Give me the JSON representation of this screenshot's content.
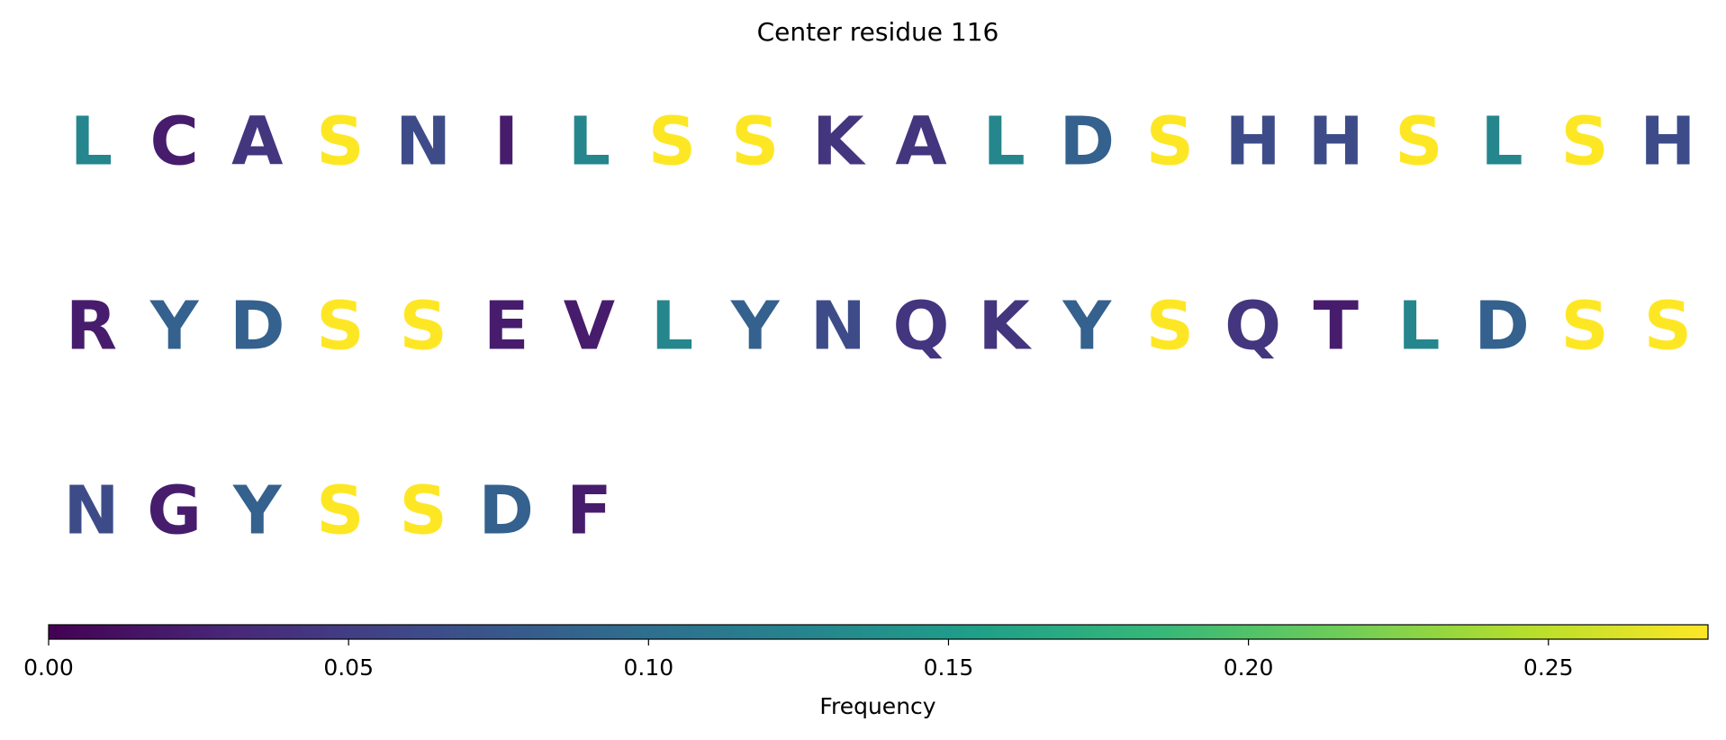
{
  "chart_data": {
    "type": "residue_colormap",
    "title": "Center residue 116",
    "colorbar_label": "Frequency",
    "colormap": "viridis",
    "categories": [
      "L",
      "C",
      "A",
      "S",
      "N",
      "I",
      "L",
      "S",
      "S",
      "K",
      "A",
      "L",
      "D",
      "S",
      "H",
      "H",
      "S",
      "L",
      "S",
      "H",
      "R",
      "Y",
      "D",
      "S",
      "S",
      "E",
      "V",
      "L",
      "Y",
      "N",
      "Q",
      "K",
      "Y",
      "S",
      "Q",
      "T",
      "L",
      "D",
      "S",
      "S",
      "N",
      "G",
      "Y",
      "S",
      "S",
      "D",
      "F"
    ],
    "values": [
      0.1277,
      0.0213,
      0.0426,
      0.2766,
      0.0638,
      0.0213,
      0.1277,
      0.2766,
      0.2766,
      0.0426,
      0.0426,
      0.1277,
      0.0851,
      0.2766,
      0.0638,
      0.0638,
      0.2766,
      0.1277,
      0.2766,
      0.0638,
      0.0213,
      0.0851,
      0.0851,
      0.2766,
      0.2766,
      0.0213,
      0.0213,
      0.1277,
      0.0851,
      0.0638,
      0.0426,
      0.0426,
      0.0851,
      0.2766,
      0.0426,
      0.0213,
      0.1277,
      0.0851,
      0.2766,
      0.2766,
      0.0638,
      0.0213,
      0.0851,
      0.2766,
      0.2766,
      0.0851,
      0.0213
    ],
    "xlim": [
      0,
      0.2766
    ],
    "xticks": [
      {
        "value": 0,
        "label": "0.00"
      },
      0.05,
      {
        "value": 0.1,
        "label": "0.10"
      },
      0.15,
      {
        "value": 0.2,
        "label": "0.20"
      },
      0.25
    ]
  }
}
